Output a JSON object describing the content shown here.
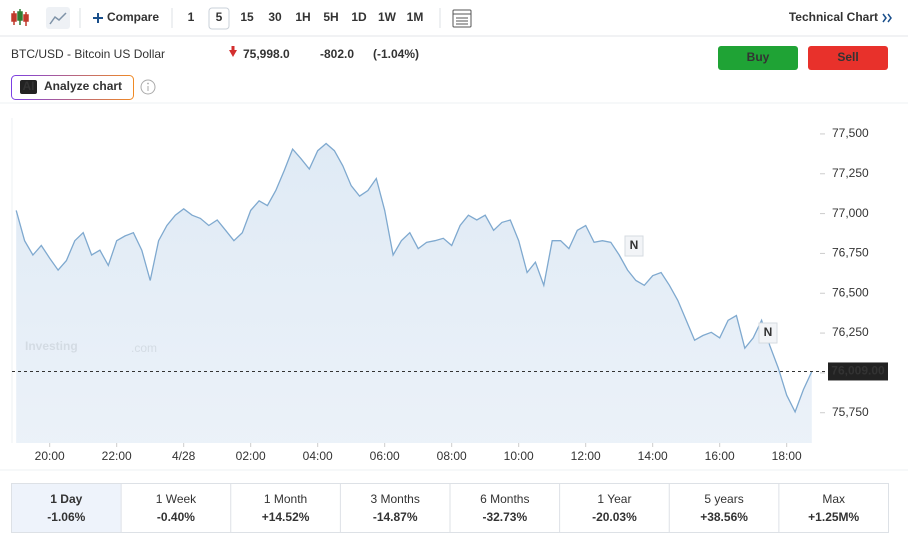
{
  "toolbar": {
    "compare": "Compare",
    "intervals": [
      "1",
      "5",
      "15",
      "30",
      "1H",
      "5H",
      "1D",
      "1W",
      "1M"
    ],
    "selected_interval": "5",
    "technical_chart": "Technical Chart"
  },
  "header": {
    "title": "BTC/USD - Bitcoin US Dollar",
    "price": "75,998.0",
    "change": "-802.0",
    "change_pct": "(-1.04%)",
    "buy": "Buy",
    "sell": "Sell",
    "ai_badge": "AI",
    "analyze": "Analyze chart"
  },
  "chart_data": {
    "type": "area",
    "color": "#7fa9cf",
    "categories": [
      null,
      null,
      null,
      null,
      "20:00",
      null,
      null,
      null,
      null,
      null,
      null,
      null,
      "22:00",
      null,
      null,
      null,
      null,
      null,
      null,
      null,
      "4/28",
      null,
      null,
      null,
      null,
      null,
      null,
      null,
      "02:00",
      null,
      null,
      null,
      null,
      null,
      null,
      null,
      "04:00",
      null,
      null,
      null,
      null,
      null,
      null,
      null,
      "06:00",
      null,
      null,
      null,
      null,
      null,
      null,
      null,
      "08:00",
      null,
      null,
      null,
      null,
      null,
      null,
      null,
      "10:00",
      null,
      null,
      null,
      null,
      null,
      null,
      null,
      "12:00",
      null,
      null,
      null,
      null,
      null,
      null,
      null,
      "14:00",
      null,
      null,
      null,
      null,
      null,
      null,
      null,
      "16:00",
      null,
      null,
      null,
      null,
      null,
      null,
      null,
      "18:00",
      null,
      null,
      null
    ],
    "values": [
      77020,
      76830,
      76740,
      76800,
      76720,
      76645,
      76705,
      76830,
      76880,
      76740,
      76770,
      76675,
      76830,
      76860,
      76880,
      76770,
      76580,
      76830,
      76925,
      76990,
      77030,
      76990,
      76970,
      76925,
      76960,
      76895,
      76830,
      76880,
      77020,
      77080,
      77050,
      77145,
      77270,
      77405,
      77345,
      77280,
      77395,
      77440,
      77395,
      77300,
      77175,
      77110,
      77145,
      77220,
      77020,
      76740,
      76830,
      76880,
      76780,
      76820,
      76830,
      76845,
      76800,
      76925,
      76990,
      76960,
      76990,
      76895,
      76945,
      76960,
      76830,
      76630,
      76695,
      76550,
      76830,
      76830,
      76780,
      76895,
      76925,
      76820,
      76830,
      76820,
      76740,
      76645,
      76580,
      76550,
      76610,
      76630,
      76550,
      76455,
      76330,
      76205,
      76235,
      76255,
      76220,
      76330,
      76360,
      76155,
      76220,
      76330,
      76170,
      76030,
      75860,
      75755,
      75895,
      76009
    ],
    "ylim": [
      75560,
      77600
    ],
    "yticks": [
      {
        "value": 75750,
        "label": "75,750"
      },
      {
        "value": 76000,
        "label": "76,000"
      },
      {
        "value": 76250,
        "label": "76,250"
      },
      {
        "value": 76500,
        "label": "76,500"
      },
      {
        "value": 76750,
        "label": "76,750"
      },
      {
        "value": 77000,
        "label": "77,000"
      },
      {
        "value": 77250,
        "label": "77,250"
      },
      {
        "value": 77500,
        "label": "77,500"
      }
    ],
    "last_price": {
      "value": 76009,
      "label": "76,009.00"
    },
    "watermark": "Investing",
    "watermark_suffix": ".com",
    "news_markers": [
      "N",
      "N"
    ]
  },
  "periods": [
    {
      "label": "1 Day",
      "change": "-1.06%",
      "color": "#d32f2f",
      "selected": true
    },
    {
      "label": "1 Week",
      "change": "-0.40%",
      "color": "#d32f2f"
    },
    {
      "label": "1 Month",
      "change": "+14.52%",
      "color": "#1b8a3a"
    },
    {
      "label": "3 Months",
      "change": "-14.87%",
      "color": "#d32f2f"
    },
    {
      "label": "6 Months",
      "change": "-32.73%",
      "color": "#d32f2f"
    },
    {
      "label": "1 Year",
      "change": "-20.03%",
      "color": "#d32f2f"
    },
    {
      "label": "5 years",
      "change": "+38.56%",
      "color": "#1b8a3a"
    },
    {
      "label": "Max",
      "change": "+1.25M%",
      "color": "#1b8a3a"
    }
  ]
}
